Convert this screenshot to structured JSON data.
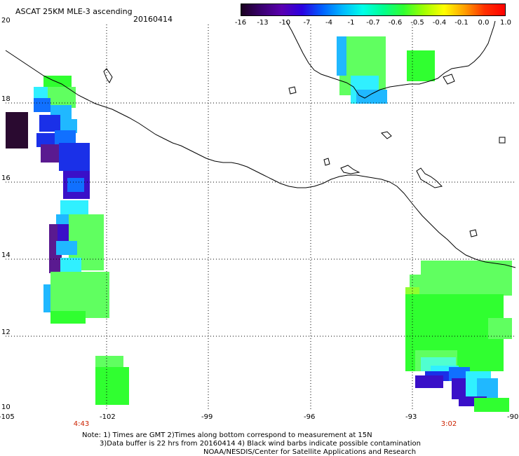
{
  "header": {
    "title": "ASCAT 25KM MLE-3 ascending",
    "date": "20160414"
  },
  "colorbar": {
    "labels": [
      "-16",
      "-13",
      "-10",
      "-7",
      "-4",
      "-1",
      "-0.7",
      "-0.6",
      "-0.5",
      "-0.4",
      "-0.1",
      "0.0",
      "1.0"
    ],
    "colors": [
      "#1a0020",
      "#3a0070",
      "#5a00b0",
      "#2a00e0",
      "#0060ff",
      "#00b8ff",
      "#00ffe8",
      "#00ff90",
      "#30ff30",
      "#a0ff00",
      "#ffff00",
      "#ffa000",
      "#ff3000",
      "#ff0000"
    ]
  },
  "axes": {
    "lat_labels": [
      "20",
      "18",
      "16",
      "14",
      "12",
      "10"
    ],
    "lon_labels": [
      "-105",
      "-102",
      "-99",
      "-96",
      "-93",
      "-90"
    ]
  },
  "pass_times": [
    "4:43",
    "3:02"
  ],
  "notes": {
    "line1": "Note: 1) Times are GMT 2)Times along bottom correspond to measurement at 15N",
    "line2": "3)Data buffer is 22 hrs from 20160414 4) Black wind barbs indicate possible contamination",
    "line3": "NOAA/NESDIS/Center for Satellite Applications and Research"
  }
}
